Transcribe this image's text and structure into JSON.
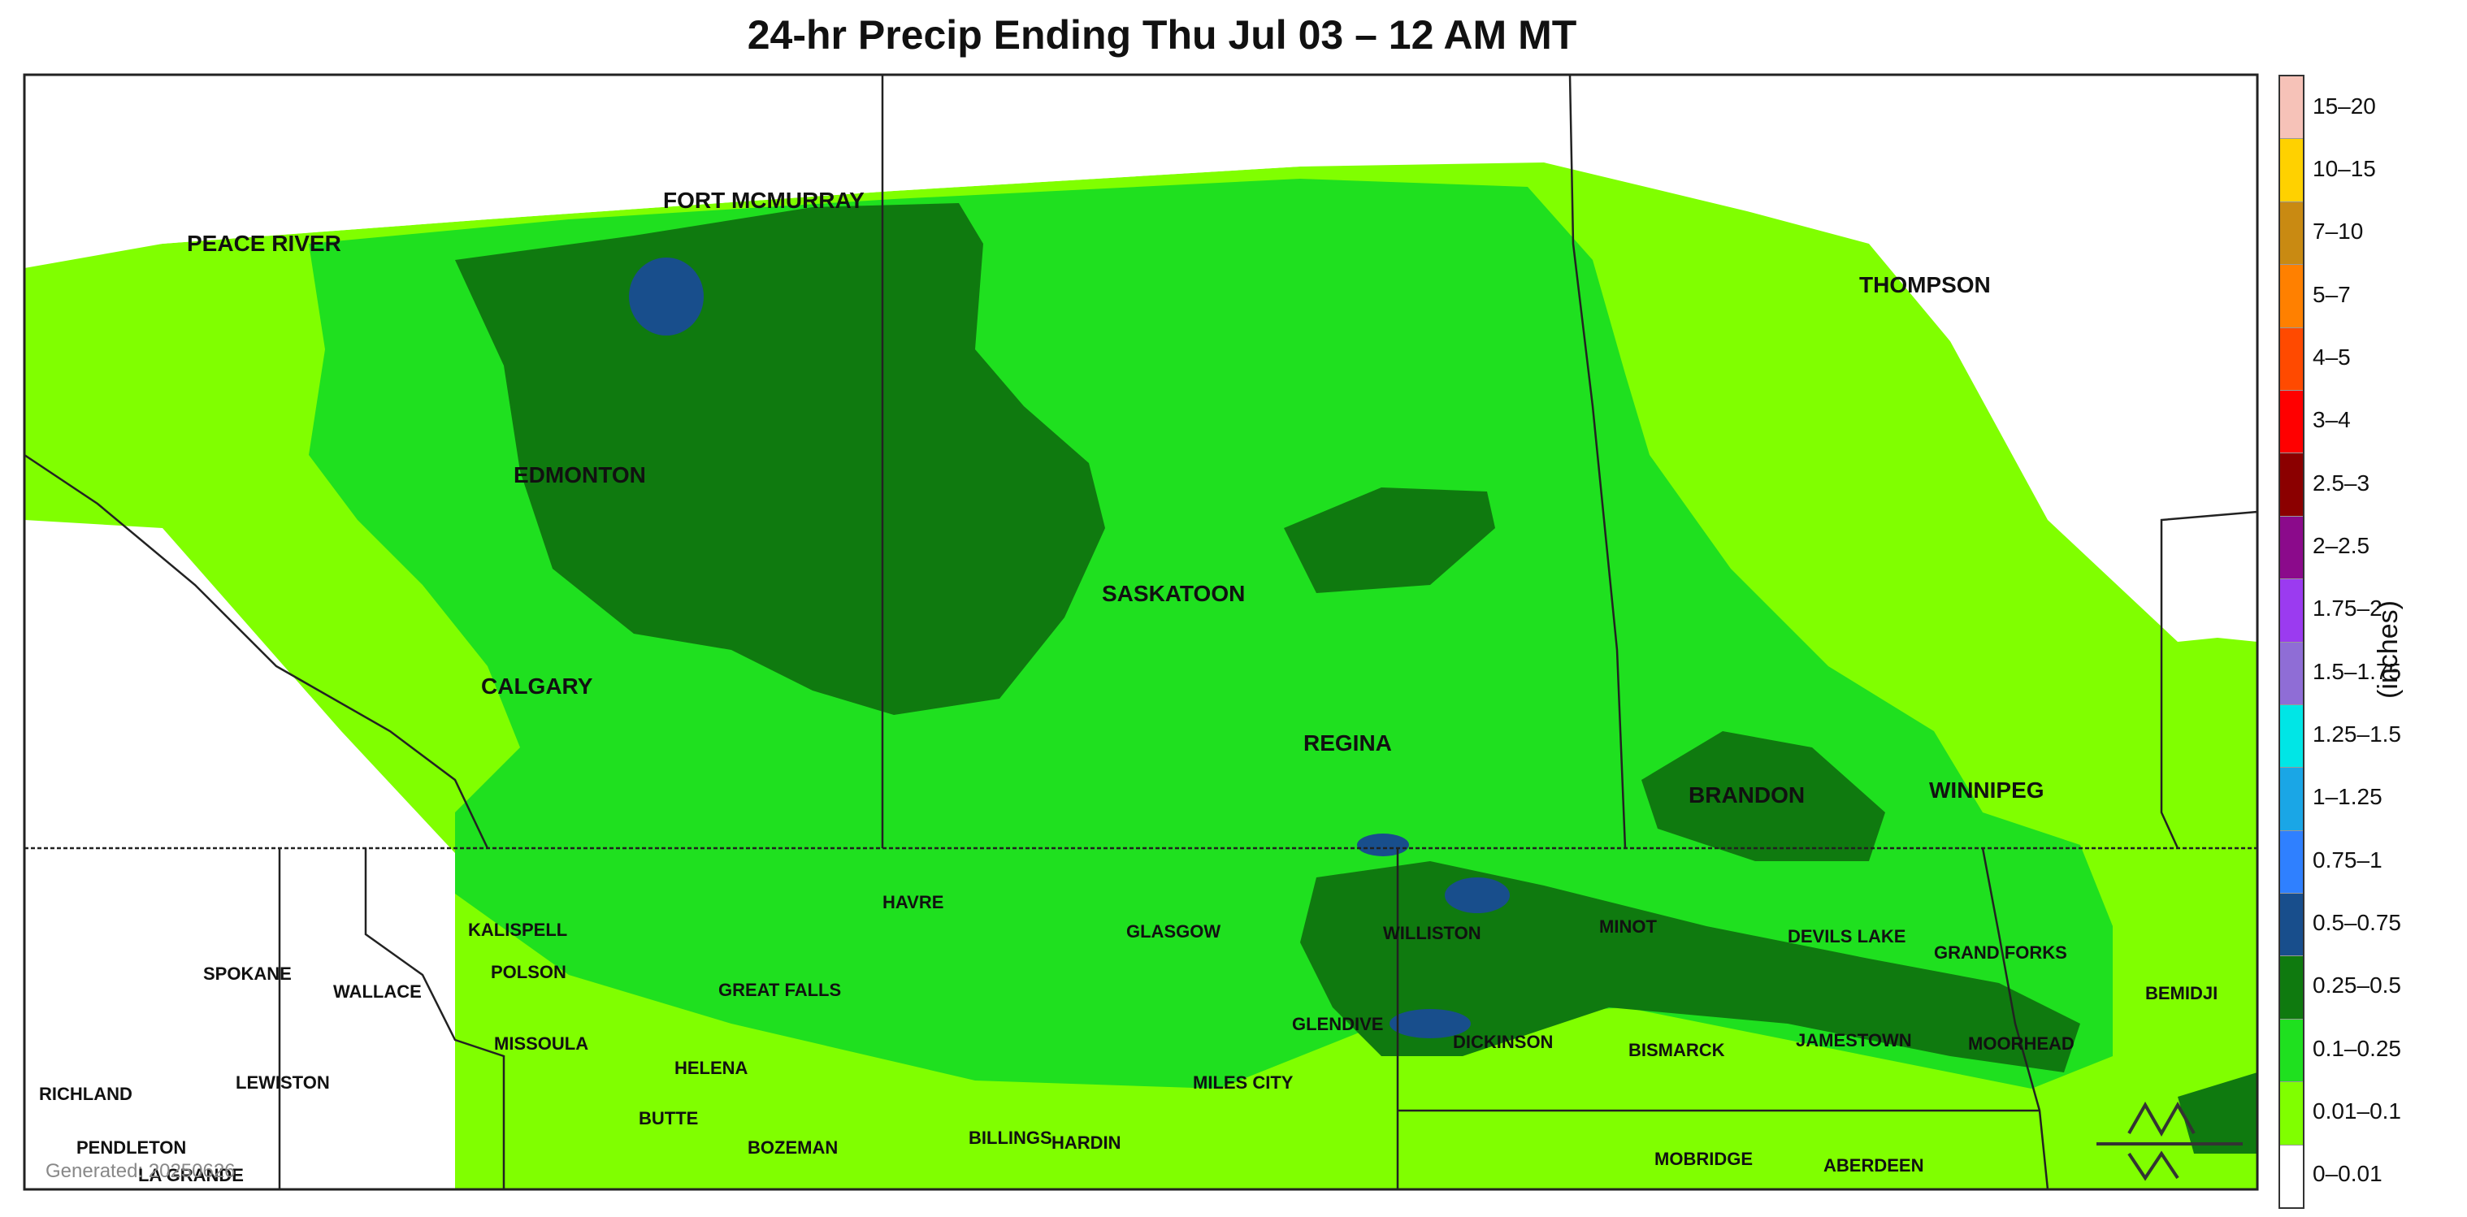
{
  "title": "24-hr Precip Ending Thu Jul 03 – 12 AM MT",
  "units": "(inches)",
  "generated": "Generated: 20250626",
  "legend": [
    {
      "label": "15–20",
      "color": "#f6c2b8"
    },
    {
      "label": "10–15",
      "color": "#ffd100"
    },
    {
      "label": "7–10",
      "color": "#c98a12"
    },
    {
      "label": "5–7",
      "color": "#ff8000"
    },
    {
      "label": "4–5",
      "color": "#ff4a00"
    },
    {
      "label": "3–4",
      "color": "#ff0000"
    },
    {
      "label": "2.5–3",
      "color": "#8b0000"
    },
    {
      "label": "2–2.5",
      "color": "#8b0a8b"
    },
    {
      "label": "1.75–2",
      "color": "#9b3bf0"
    },
    {
      "label": "1.5–1.75",
      "color": "#8f6dd6"
    },
    {
      "label": "1.25–1.5",
      "color": "#00e6e6"
    },
    {
      "label": "1–1.25",
      "color": "#1aa6e6"
    },
    {
      "label": "0.75–1",
      "color": "#2f80ff"
    },
    {
      "label": "0.5–0.75",
      "color": "#184e8c"
    },
    {
      "label": "0.25–0.5",
      "color": "#0f7a0f"
    },
    {
      "label": "0.1–0.25",
      "color": "#1fe01f"
    },
    {
      "label": "0.01–0.1",
      "color": "#80ff00"
    },
    {
      "label": "0–0.01",
      "color": "#ffffff"
    }
  ],
  "cities": [
    "PEACE RIVER",
    "FORT MCMURRAY",
    "EDMONTON",
    "CALGARY",
    "SASKATOON",
    "REGINA",
    "THOMPSON",
    "BRANDON",
    "WINNIPEG",
    "HAVRE",
    "GLASGOW",
    "WILLISTON",
    "MINOT",
    "DEVILS LAKE",
    "GRAND FORKS",
    "KALISPELL",
    "POLSON",
    "SPOKANE",
    "WALLACE",
    "MISSOULA",
    "GREAT FALLS",
    "HELENA",
    "BUTTE",
    "BOZEMAN",
    "BILLINGS",
    "HARDIN",
    "MILES CITY",
    "GLENDIVE",
    "DICKINSON",
    "BISMARCK",
    "JAMESTOWN",
    "MOORHEAD",
    "BEMIDJI",
    "MOBRIDGE",
    "ABERDEEN",
    "RICHLAND",
    "LEWISTON",
    "PENDLETON",
    "LA GRANDE"
  ]
}
